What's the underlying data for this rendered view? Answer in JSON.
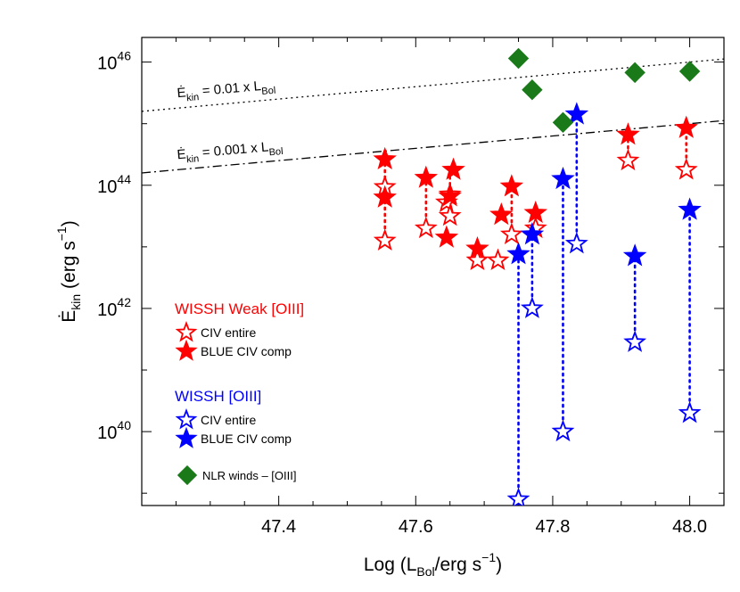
{
  "chart_data": {
    "type": "scatter",
    "xlabel": {
      "pre": "Log (L",
      "sub": "Bol",
      "mid": "/erg s",
      "sup": "−1",
      "post": ")"
    },
    "ylabel": {
      "main": "Ė",
      "sub": "kin",
      "mid": " (erg s",
      "sup": "−1",
      "post": ")"
    },
    "x_scale": "linear",
    "y_scale": "log",
    "xlim": [
      47.2,
      48.05
    ],
    "ylim_log10": [
      38.8,
      46.4
    ],
    "x_ticks": [
      {
        "value": 47.4,
        "label": "47.4"
      },
      {
        "value": 47.6,
        "label": "47.6"
      },
      {
        "value": 47.8,
        "label": "47.8"
      },
      {
        "value": 48.0,
        "label": "48.0"
      }
    ],
    "y_ticks": [
      {
        "log": 40,
        "base": "10",
        "exp": "40"
      },
      {
        "log": 42,
        "base": "10",
        "exp": "42"
      },
      {
        "log": 44,
        "base": "10",
        "exp": "44"
      },
      {
        "log": 46,
        "base": "10",
        "exp": "46"
      }
    ],
    "lines": [
      {
        "ratio": 0.01,
        "style": "dotted",
        "label": {
          "pre": "Ė",
          "sub": "kin",
          "mid": " = 0.01 x L",
          "sub2": "Bol"
        }
      },
      {
        "ratio": 0.001,
        "style": "dashdot",
        "label": {
          "pre": "Ė",
          "sub": "kin",
          "mid": " = 0.001 x L",
          "sub2": "Bol"
        }
      }
    ],
    "legend": {
      "groups": [
        {
          "title": "WISSH Weak [OIII]",
          "color": "#ff0000",
          "entries": [
            {
              "label": "CIV entire",
              "marker": "open-star"
            },
            {
              "label": "BLUE CIV comp",
              "marker": "filled-star"
            }
          ]
        },
        {
          "title": "WISSH [OIII]",
          "color": "#0000ff",
          "entries": [
            {
              "label": "CIV entire",
              "marker": "open-star"
            },
            {
              "label": "BLUE CIV comp",
              "marker": "filled-star"
            }
          ]
        }
      ],
      "extra": {
        "label": "NLR winds – [OIII]",
        "color": "#1a7a1a",
        "marker": "diamond"
      }
    },
    "series": [
      {
        "name": "NLR winds – [OIII]",
        "color": "#1a7a1a",
        "marker": "diamond",
        "points": [
          [
            47.75,
            46.06
          ],
          [
            47.77,
            45.55
          ],
          [
            47.815,
            45.02
          ],
          [
            47.92,
            45.83
          ],
          [
            48.0,
            45.85
          ]
        ]
      },
      {
        "name": "WISSH Weak [OIII] – CIV entire",
        "color": "#ff0000",
        "marker": "open-star",
        "points": [
          [
            47.555,
            43.1
          ],
          [
            47.555,
            43.97
          ],
          [
            47.615,
            43.3
          ],
          [
            47.645,
            43.72
          ],
          [
            47.65,
            43.5
          ],
          [
            47.65,
            43.85
          ],
          [
            47.69,
            42.78
          ],
          [
            47.72,
            42.78
          ],
          [
            47.74,
            43.2
          ],
          [
            47.775,
            43.3
          ],
          [
            47.91,
            44.4
          ],
          [
            47.995,
            44.25
          ]
        ]
      },
      {
        "name": "WISSH Weak [OIII] – BLUE CIV comp",
        "color": "#ff0000",
        "marker": "filled-star",
        "points": [
          [
            47.555,
            44.42
          ],
          [
            47.555,
            43.8
          ],
          [
            47.615,
            44.12
          ],
          [
            47.645,
            43.15
          ],
          [
            47.655,
            44.25
          ],
          [
            47.65,
            43.82
          ],
          [
            47.69,
            42.97
          ],
          [
            47.725,
            43.52
          ],
          [
            47.74,
            43.98
          ],
          [
            47.775,
            43.55
          ],
          [
            47.91,
            44.82
          ],
          [
            47.995,
            44.93
          ]
        ]
      },
      {
        "name": "WISSH [OIII] – CIV entire",
        "color": "#0000ff",
        "marker": "open-star",
        "points": [
          [
            47.75,
            38.9
          ],
          [
            47.77,
            42.0
          ],
          [
            47.815,
            40.0
          ],
          [
            47.835,
            43.05
          ],
          [
            47.92,
            41.45
          ],
          [
            48.0,
            40.3
          ]
        ]
      },
      {
        "name": "WISSH [OIII] – BLUE CIV comp",
        "color": "#0000ff",
        "marker": "filled-star",
        "points": [
          [
            47.75,
            42.88
          ],
          [
            47.77,
            43.2
          ],
          [
            47.815,
            44.1
          ],
          [
            47.835,
            45.15
          ],
          [
            47.92,
            42.85
          ],
          [
            48.0,
            43.6
          ]
        ]
      }
    ],
    "connectors": [
      {
        "color": "#ff0000",
        "x": 47.555,
        "from": 43.1,
        "to": 44.42
      },
      {
        "color": "#ff0000",
        "x": 47.615,
        "from": 43.3,
        "to": 44.12
      },
      {
        "color": "#ff0000",
        "x": 47.65,
        "from": 43.5,
        "to": 44.25
      },
      {
        "color": "#ff0000",
        "x": 47.74,
        "from": 43.2,
        "to": 43.98
      },
      {
        "color": "#ff0000",
        "x": 47.91,
        "from": 44.4,
        "to": 44.82
      },
      {
        "color": "#ff0000",
        "x": 47.995,
        "from": 44.25,
        "to": 44.93
      },
      {
        "color": "#0000ff",
        "x": 47.75,
        "from": 38.9,
        "to": 42.88
      },
      {
        "color": "#0000ff",
        "x": 47.77,
        "from": 42.0,
        "to": 43.2
      },
      {
        "color": "#0000ff",
        "x": 47.815,
        "from": 40.0,
        "to": 44.1
      },
      {
        "color": "#0000ff",
        "x": 47.835,
        "from": 43.05,
        "to": 45.15
      },
      {
        "color": "#0000ff",
        "x": 47.92,
        "from": 41.45,
        "to": 42.85
      },
      {
        "color": "#0000ff",
        "x": 48.0,
        "from": 40.3,
        "to": 43.6
      }
    ]
  }
}
